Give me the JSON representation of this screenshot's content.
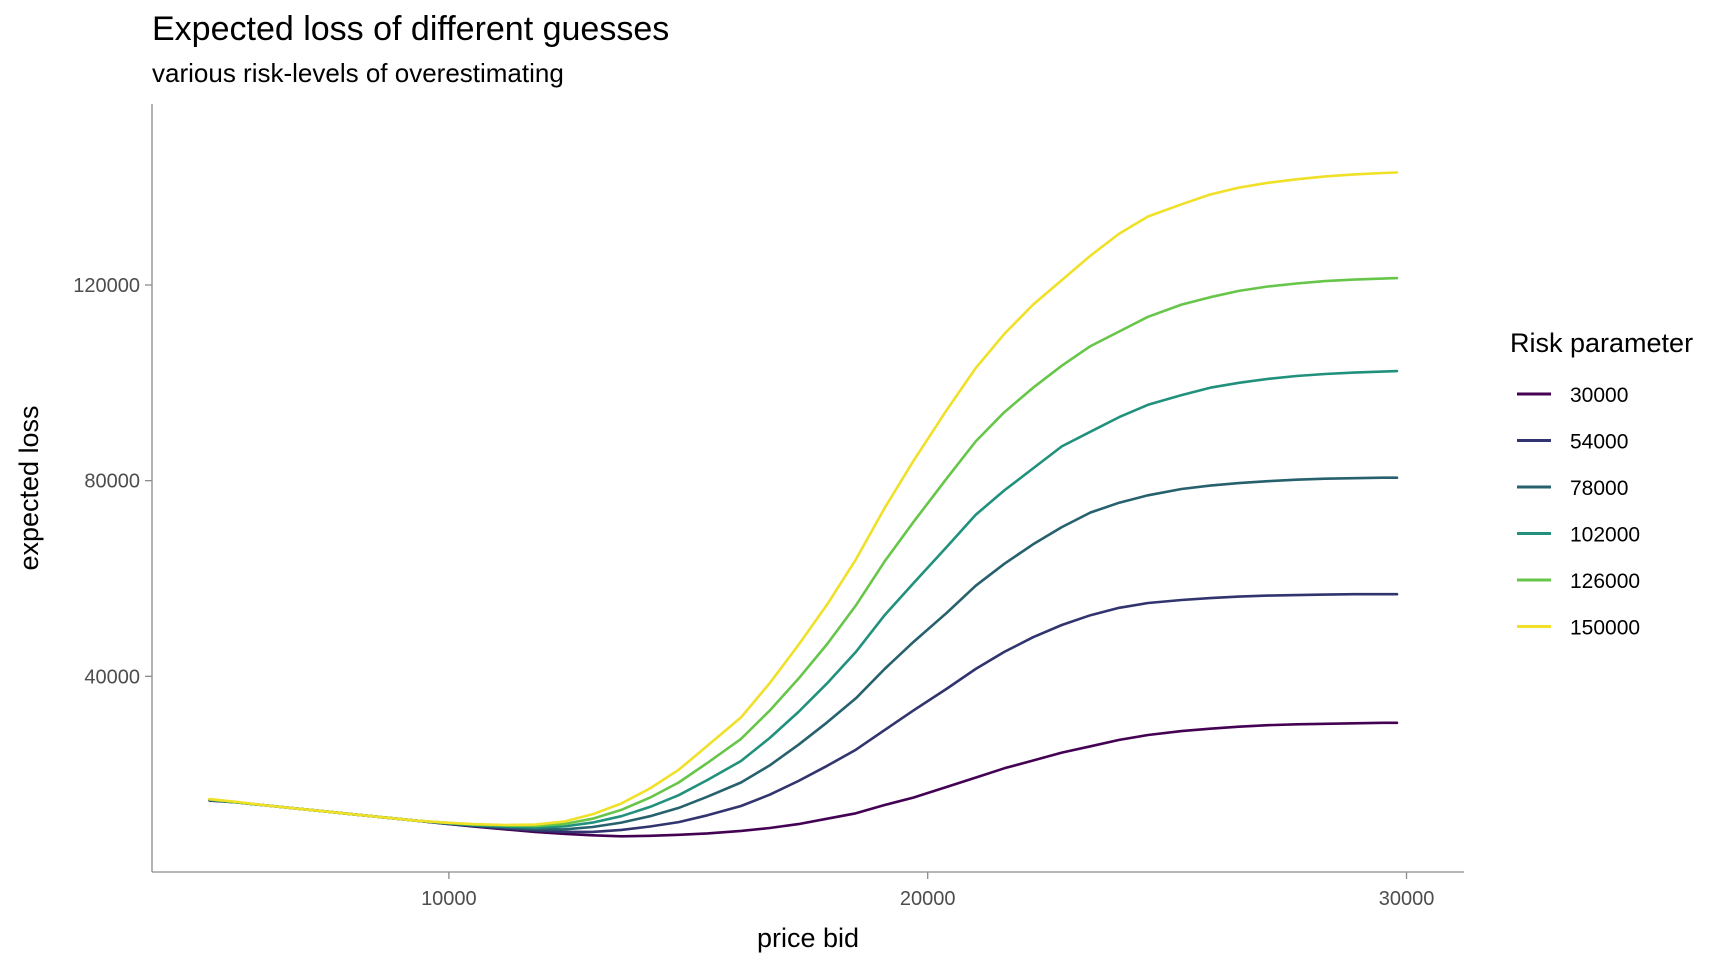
{
  "chart_data": {
    "type": "line",
    "title": "Expected loss of different guesses",
    "subtitle": "various risk-levels of overestimating",
    "xlabel": "price bid",
    "ylabel": "expected loss",
    "xlim": [
      3800,
      31200
    ],
    "ylim": [
      0,
      157000
    ],
    "xticks": [
      10000,
      20000,
      30000
    ],
    "yticks": [
      40000,
      80000,
      120000
    ],
    "grid": false,
    "legend": {
      "title": "Risk parameter",
      "position": "right"
    },
    "x": [
      5000,
      5600,
      6200,
      6900,
      7500,
      8100,
      8700,
      9300,
      9900,
      10500,
      11200,
      11800,
      12400,
      13000,
      13600,
      14200,
      14800,
      15400,
      16100,
      16700,
      17300,
      17900,
      18500,
      19100,
      19700,
      20400,
      21000,
      21600,
      22200,
      22800,
      23400,
      24000,
      24600,
      25300,
      25900,
      26500,
      27100,
      27700,
      28300,
      28900,
      29500,
      29800
    ],
    "series": [
      {
        "name": "30000",
        "color": "#440154",
        "values": [
          14600,
          14200,
          13600,
          12900,
          12300,
          11700,
          11100,
          10500,
          9900,
          9300,
          8700,
          8200,
          7800,
          7500,
          7300,
          7400,
          7600,
          7900,
          8400,
          9000,
          9800,
          10900,
          12000,
          13700,
          15200,
          17400,
          19300,
          21200,
          22800,
          24400,
          25700,
          27000,
          28000,
          28800,
          29300,
          29700,
          30000,
          30200,
          30300,
          30400,
          30500,
          30500
        ]
      },
      {
        "name": "54000",
        "color": "#31346e",
        "values": [
          14700,
          14200,
          13600,
          12900,
          12300,
          11700,
          11100,
          10500,
          9900,
          9400,
          8900,
          8500,
          8200,
          8200,
          8600,
          9300,
          10200,
          11600,
          13500,
          15800,
          18600,
          21700,
          25000,
          29000,
          33000,
          37500,
          41500,
          45000,
          48000,
          50500,
          52500,
          54000,
          55000,
          55600,
          56000,
          56300,
          56500,
          56600,
          56700,
          56800,
          56800,
          56800
        ]
      },
      {
        "name": "78000",
        "color": "#26616d",
        "values": [
          14700,
          14200,
          13600,
          12900,
          12300,
          11700,
          11100,
          10500,
          10000,
          9500,
          9100,
          8800,
          8700,
          9200,
          10100,
          11400,
          13100,
          15400,
          18300,
          21800,
          26000,
          30600,
          35500,
          41500,
          47000,
          53000,
          58500,
          63000,
          67000,
          70500,
          73500,
          75500,
          77000,
          78300,
          79000,
          79500,
          79900,
          80200,
          80400,
          80500,
          80600,
          80600
        ]
      },
      {
        "name": "102000",
        "color": "#21917d",
        "values": [
          14800,
          14200,
          13600,
          12900,
          12300,
          11700,
          11100,
          10500,
          10000,
          9600,
          9300,
          9100,
          9300,
          10100,
          11400,
          13300,
          15700,
          18800,
          22700,
          27400,
          32700,
          38600,
          45000,
          52500,
          59000,
          66500,
          73000,
          78000,
          82500,
          87000,
          90000,
          93000,
          95500,
          97500,
          99000,
          100000,
          100800,
          101400,
          101800,
          102100,
          102300,
          102400
        ]
      },
      {
        "name": "126000",
        "color": "#67c64a",
        "values": [
          14800,
          14200,
          13600,
          12900,
          12300,
          11700,
          11100,
          10500,
          10100,
          9700,
          9500,
          9400,
          9800,
          10900,
          12700,
          15200,
          18300,
          22300,
          27200,
          33000,
          39500,
          46600,
          54500,
          63500,
          71500,
          80500,
          88000,
          94000,
          99000,
          103500,
          107500,
          110500,
          113500,
          116000,
          117500,
          118800,
          119700,
          120300,
          120800,
          121100,
          121300,
          121400
        ]
      },
      {
        "name": "150000",
        "color": "#f0e028",
        "values": [
          14900,
          14300,
          13600,
          12900,
          12300,
          11700,
          11100,
          10500,
          10100,
          9800,
          9600,
          9700,
          10300,
          11800,
          14000,
          17100,
          20900,
          25800,
          31600,
          38600,
          46400,
          54700,
          63900,
          74400,
          84000,
          94500,
          103000,
          110000,
          116000,
          121000,
          126000,
          130500,
          134000,
          136500,
          138500,
          139900,
          140900,
          141600,
          142200,
          142600,
          142900,
          143000
        ]
      }
    ]
  }
}
